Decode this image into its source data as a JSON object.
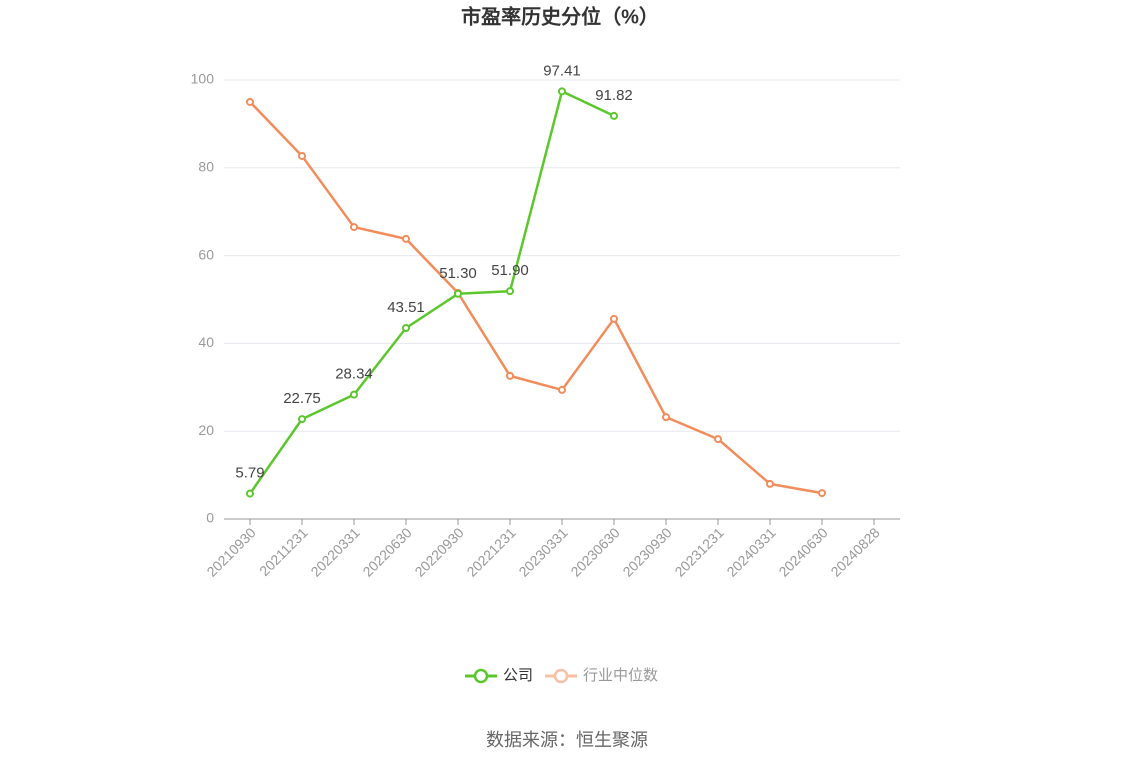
{
  "chart_data": {
    "type": "line",
    "title": "市盈率历史分位（%）",
    "categories": [
      "20210930",
      "20211231",
      "20220331",
      "20220630",
      "20220930",
      "20221231",
      "20230331",
      "20230630",
      "20230930",
      "20231231",
      "20240331",
      "20240630",
      "20240828"
    ],
    "series": [
      {
        "name": "公司",
        "color": "#5cc72d",
        "values": [
          5.79,
          22.75,
          28.34,
          43.51,
          51.3,
          51.9,
          97.41,
          91.82,
          null,
          null,
          null,
          null,
          null
        ],
        "value_labels": [
          "5.79",
          "22.75",
          "28.34",
          "43.51",
          "51.30",
          "51.90",
          "97.41",
          "91.82",
          null,
          null,
          null,
          null,
          null
        ]
      },
      {
        "name": "行业中位数",
        "color": "#f28c5a",
        "values": [
          95.0,
          82.7,
          66.5,
          63.8,
          51.5,
          32.6,
          29.4,
          45.6,
          23.2,
          18.2,
          8.0,
          5.9,
          null
        ]
      }
    ],
    "ylim": [
      0,
      100
    ],
    "yticks": [
      0,
      20,
      40,
      60,
      80,
      100
    ],
    "grid": true,
    "legend": "bottom",
    "source": "数据来源：恒生聚源"
  }
}
